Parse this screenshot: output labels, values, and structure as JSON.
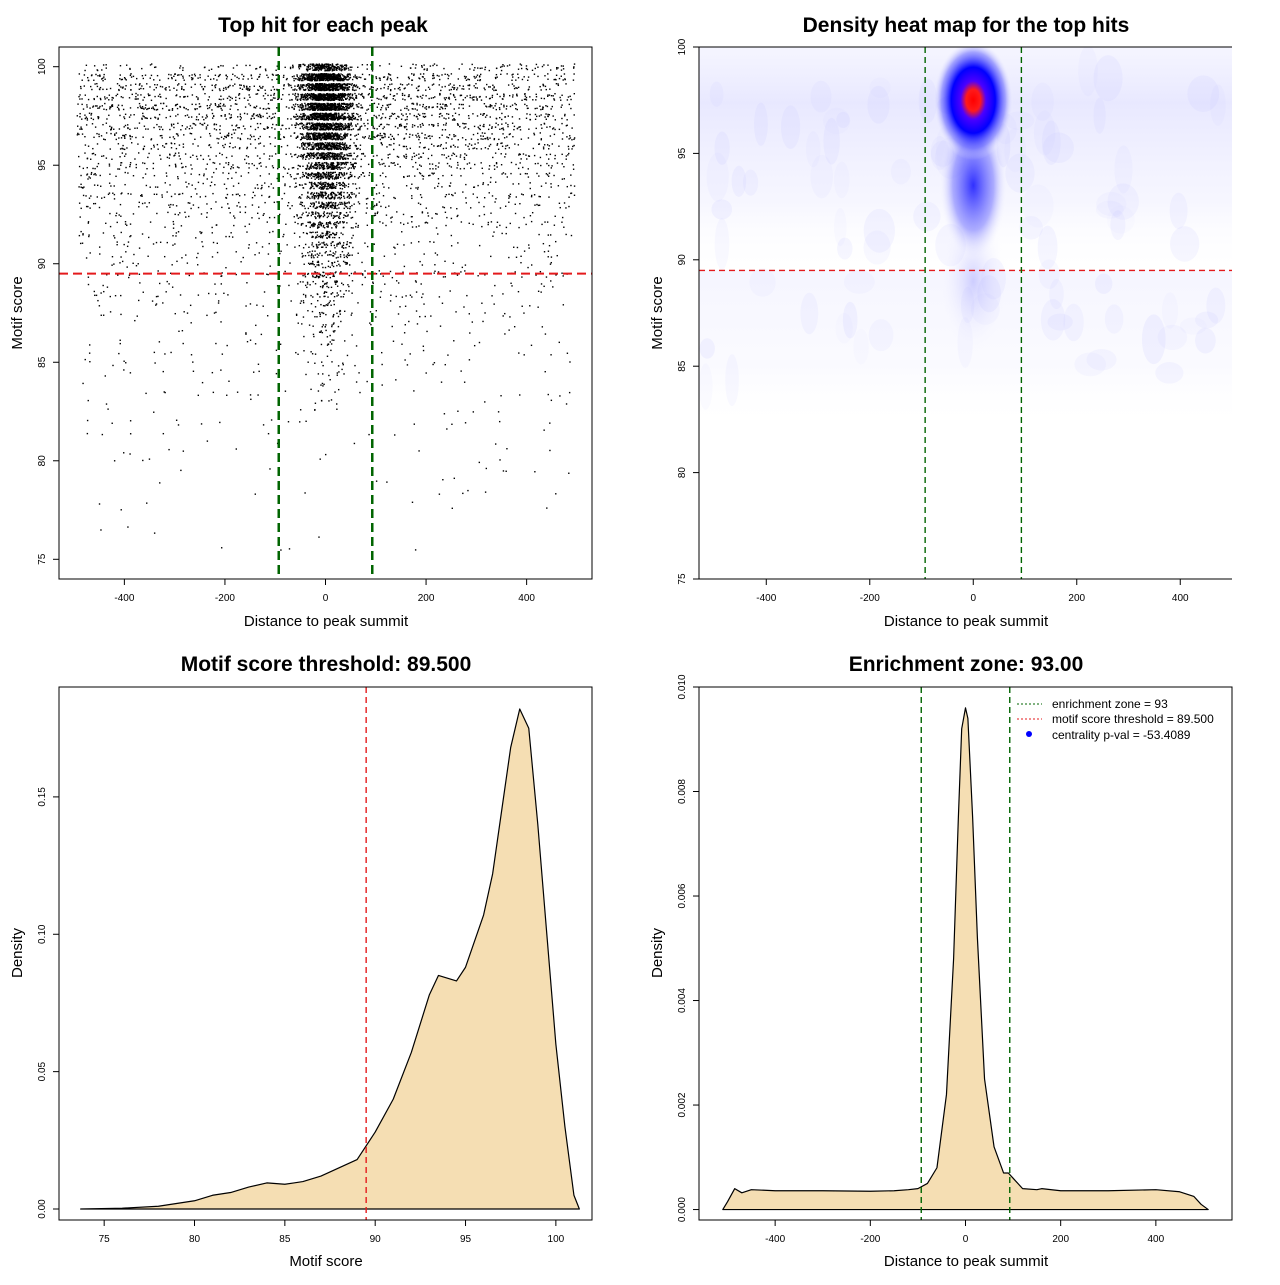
{
  "figure": {
    "charts": [
      {
        "id": "scatter",
        "type": "scatter",
        "title": "Top hit for each peak",
        "xlabel": "Distance to peak summit",
        "ylabel": "Motif score",
        "xlim": [
          -530,
          530
        ],
        "ylim": [
          74,
          101
        ],
        "xticks": [
          -400,
          -200,
          0,
          200,
          400
        ],
        "yticks": [
          75,
          80,
          85,
          90,
          95,
          100
        ],
        "hline": {
          "y": 89.5,
          "color": "#e41a1c",
          "style": "dashed"
        },
        "vlines": [
          {
            "x": -93,
            "color": "#006400"
          },
          {
            "x": 93,
            "color": "#006400"
          }
        ],
        "point_clusters": [
          {
            "region": "background",
            "x_range": [
              -495,
              495
            ],
            "y_range": [
              75,
              100
            ],
            "approx_points": 3500,
            "density_peak_y": 98
          },
          {
            "region": "central",
            "x_range": [
              -80,
              80
            ],
            "y_range": [
              82,
              100
            ],
            "approx_points": 4500,
            "density_peak_y": 98
          }
        ]
      },
      {
        "id": "heatmap",
        "type": "heatmap",
        "title": "Density heat map for the top hits",
        "xlabel": "Distance to peak summit",
        "ylabel": "Motif score",
        "xlim": [
          -530,
          500
        ],
        "ylim": [
          75,
          100
        ],
        "xticks": [
          -400,
          -200,
          0,
          200,
          400
        ],
        "yticks": [
          75,
          80,
          85,
          90,
          95,
          100
        ],
        "hotspot": {
          "x": 0,
          "y": 97.5,
          "colors": [
            "#ffffff",
            "#0000ff",
            "#ff0000"
          ]
        },
        "hline": {
          "y": 89.5,
          "color": "#e41a1c"
        },
        "vlines": [
          {
            "x": -93,
            "color": "#006400"
          },
          {
            "x": 93,
            "color": "#006400"
          }
        ]
      },
      {
        "id": "score_density",
        "type": "area",
        "title": "Motif score threshold: 89.500",
        "xlabel": "Motif score",
        "ylabel": "Density",
        "xlim": [
          72.5,
          102
        ],
        "ylim": [
          -0.004,
          0.19
        ],
        "xticks": [
          75,
          80,
          85,
          90,
          95,
          100
        ],
        "yticks": [
          0.0,
          0.05,
          0.1,
          0.15
        ],
        "ytick_labels": [
          "0.00",
          "0.05",
          "0.10",
          "0.15"
        ],
        "fill": "#f5deb3",
        "vline": {
          "x": 89.5,
          "color": "#e41a1c"
        },
        "x": [
          73.7,
          76,
          78,
          79,
          80,
          81,
          82,
          83,
          84,
          85,
          85.5,
          86,
          87,
          88,
          89,
          90,
          91,
          92,
          93,
          93.5,
          94,
          94.5,
          95,
          96,
          96.5,
          97,
          97.5,
          98,
          98.5,
          99,
          99.5,
          100,
          100.5,
          101,
          101.3
        ],
        "y": [
          0.0,
          0.0003,
          0.001,
          0.002,
          0.003,
          0.005,
          0.006,
          0.008,
          0.0095,
          0.009,
          0.0095,
          0.01,
          0.012,
          0.015,
          0.018,
          0.028,
          0.04,
          0.057,
          0.078,
          0.085,
          0.084,
          0.083,
          0.088,
          0.107,
          0.122,
          0.145,
          0.168,
          0.182,
          0.175,
          0.14,
          0.1,
          0.06,
          0.03,
          0.005,
          0.0
        ]
      },
      {
        "id": "distance_density",
        "type": "area",
        "title": "Enrichment zone: 93.00",
        "xlabel": "Distance to peak summit",
        "ylabel": "Density",
        "xlim": [
          -560,
          560
        ],
        "ylim": [
          -0.0002,
          0.01
        ],
        "xticks": [
          -400,
          -200,
          0,
          200,
          400
        ],
        "yticks": [
          0.0,
          0.002,
          0.004,
          0.006,
          0.008,
          0.01
        ],
        "ytick_labels": [
          "0.000",
          "0.002",
          "0.004",
          "0.006",
          "0.008",
          "0.010"
        ],
        "fill": "#f5deb3",
        "vlines": [
          {
            "x": -93,
            "color": "#006400"
          },
          {
            "x": 93,
            "color": "#006400"
          }
        ],
        "x": [
          -510,
          -500,
          -485,
          -470,
          -450,
          -400,
          -300,
          -200,
          -150,
          -120,
          -100,
          -80,
          -60,
          -40,
          -25,
          -15,
          -8,
          0,
          5,
          15,
          25,
          40,
          60,
          80,
          90,
          100,
          120,
          150,
          160,
          200,
          300,
          400,
          450,
          480,
          495,
          510
        ],
        "y": [
          0.0,
          0.00015,
          0.0004,
          0.00032,
          0.00038,
          0.00036,
          0.00036,
          0.00035,
          0.00036,
          0.00038,
          0.0004,
          0.0005,
          0.0008,
          0.0022,
          0.0048,
          0.0075,
          0.0092,
          0.0096,
          0.0094,
          0.0075,
          0.0052,
          0.0025,
          0.0012,
          0.0007,
          0.0007,
          0.0006,
          0.0004,
          0.00038,
          0.0004,
          0.00036,
          0.00036,
          0.00038,
          0.00034,
          0.00025,
          0.0001,
          0.0
        ]
      }
    ],
    "legend": {
      "position": "top-right",
      "entries": [
        {
          "label": "enrichment zone = 93",
          "color": "#006400",
          "kind": "line"
        },
        {
          "label": "motif score threshold = 89.500",
          "color": "#e41a1c",
          "kind": "line"
        },
        {
          "label": "centrality p-val = -53.4089",
          "color": "#0000ff",
          "kind": "point"
        }
      ]
    }
  },
  "chart_data": [
    {
      "type": "scatter",
      "title": "Top hit for each peak",
      "xlabel": "Distance to peak summit",
      "ylabel": "Motif score",
      "xlim": [
        -530,
        530
      ],
      "ylim": [
        74,
        101
      ],
      "threshold_y": 89.5,
      "enrichment_x": [
        -93,
        93
      ]
    },
    {
      "type": "heatmap",
      "title": "Density heat map for the top hits",
      "xlabel": "Distance to peak summit",
      "ylabel": "Motif score",
      "xlim": [
        -530,
        500
      ],
      "ylim": [
        75,
        100
      ],
      "peak": {
        "x": 0,
        "y": 97.5
      }
    },
    {
      "type": "area",
      "title": "Motif score threshold: 89.500",
      "xlabel": "Motif score",
      "ylabel": "Density",
      "x": [
        73.7,
        76,
        78,
        79,
        80,
        81,
        82,
        83,
        84,
        85,
        85.5,
        86,
        87,
        88,
        89,
        90,
        91,
        92,
        93,
        93.5,
        94,
        94.5,
        95,
        96,
        96.5,
        97,
        97.5,
        98,
        98.5,
        99,
        99.5,
        100,
        100.5,
        101,
        101.3
      ],
      "y": [
        0.0,
        0.0003,
        0.001,
        0.002,
        0.003,
        0.005,
        0.006,
        0.008,
        0.0095,
        0.009,
        0.0095,
        0.01,
        0.012,
        0.015,
        0.018,
        0.028,
        0.04,
        0.057,
        0.078,
        0.085,
        0.084,
        0.083,
        0.088,
        0.107,
        0.122,
        0.145,
        0.168,
        0.182,
        0.175,
        0.14,
        0.1,
        0.06,
        0.03,
        0.005,
        0.0
      ]
    },
    {
      "type": "area",
      "title": "Enrichment zone: 93.00",
      "xlabel": "Distance to peak summit",
      "ylabel": "Density",
      "x": [
        -510,
        -500,
        -485,
        -470,
        -450,
        -400,
        -300,
        -200,
        -150,
        -120,
        -100,
        -80,
        -60,
        -40,
        -25,
        -15,
        -8,
        0,
        5,
        15,
        25,
        40,
        60,
        80,
        90,
        100,
        120,
        150,
        160,
        200,
        300,
        400,
        450,
        480,
        495,
        510
      ],
      "y": [
        0.0,
        0.00015,
        0.0004,
        0.00032,
        0.00038,
        0.00036,
        0.00036,
        0.00035,
        0.00036,
        0.00038,
        0.0004,
        0.0005,
        0.0008,
        0.0022,
        0.0048,
        0.0075,
        0.0092,
        0.0096,
        0.0094,
        0.0075,
        0.0052,
        0.0025,
        0.0012,
        0.0007,
        0.0007,
        0.0006,
        0.0004,
        0.00038,
        0.0004,
        0.00036,
        0.00036,
        0.00038,
        0.00034,
        0.00025,
        0.0001,
        0.0
      ]
    }
  ]
}
